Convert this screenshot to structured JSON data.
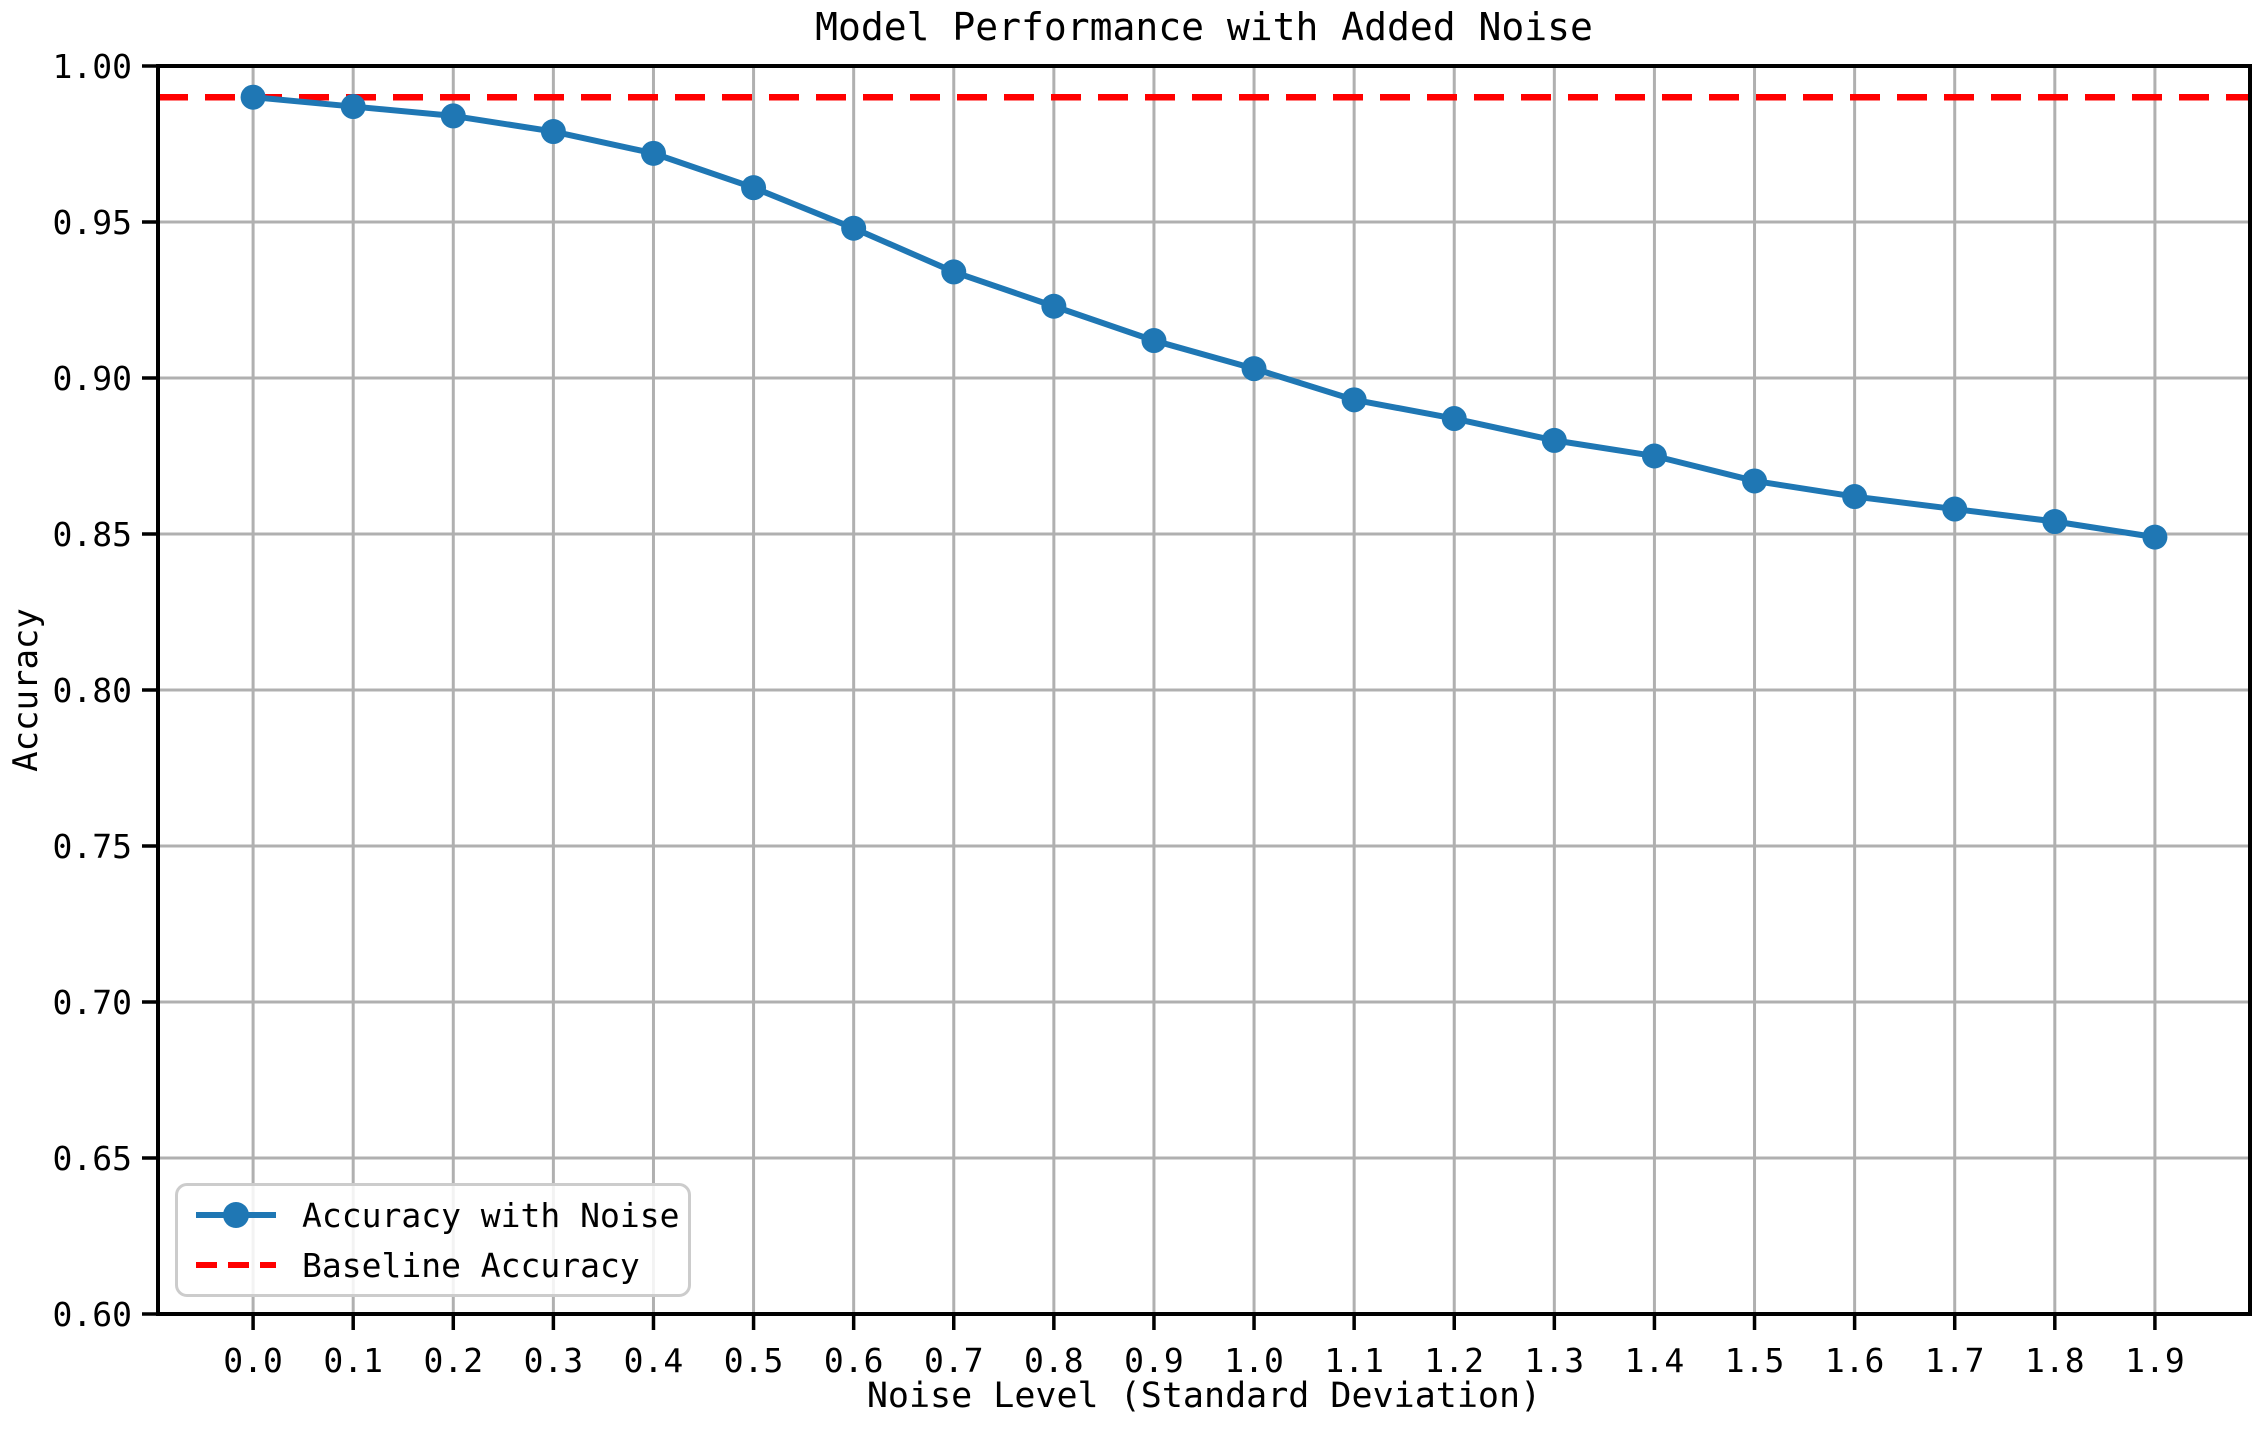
{
  "chart_data": {
    "type": "line",
    "title": "Model Performance with Added Noise",
    "xlabel": "Noise Level (Standard Deviation)",
    "ylabel": "Accuracy",
    "x": [
      0.0,
      0.1,
      0.2,
      0.3,
      0.4,
      0.5,
      0.6,
      0.7,
      0.8,
      0.9,
      1.0,
      1.1,
      1.2,
      1.3,
      1.4,
      1.5,
      1.6,
      1.7,
      1.8,
      1.9
    ],
    "series": [
      {
        "name": "Accuracy with Noise",
        "kind": "line-with-markers",
        "color": "#1f77b4",
        "values": [
          0.99,
          0.987,
          0.984,
          0.979,
          0.972,
          0.961,
          0.948,
          0.934,
          0.923,
          0.912,
          0.903,
          0.893,
          0.887,
          0.88,
          0.875,
          0.867,
          0.862,
          0.858,
          0.854,
          0.849
        ]
      },
      {
        "name": "Baseline Accuracy",
        "kind": "horizontal-dashed-line",
        "color": "#ff0000",
        "value": 0.99
      }
    ],
    "xlim": [
      -0.095,
      1.995
    ],
    "ylim": [
      0.6,
      1.0
    ],
    "xticks": [
      0.0,
      0.1,
      0.2,
      0.3,
      0.4,
      0.5,
      0.6,
      0.7,
      0.8,
      0.9,
      1.0,
      1.1,
      1.2,
      1.3,
      1.4,
      1.5,
      1.6,
      1.7,
      1.8,
      1.9
    ],
    "xtick_labels": [
      "0.0",
      "0.1",
      "0.2",
      "0.3",
      "0.4",
      "0.5",
      "0.6",
      "0.7",
      "0.8",
      "0.9",
      "1.0",
      "1.1",
      "1.2",
      "1.3",
      "1.4",
      "1.5",
      "1.6",
      "1.7",
      "1.8",
      "1.9"
    ],
    "yticks": [
      0.6,
      0.65,
      0.7,
      0.75,
      0.8,
      0.85,
      0.9,
      0.95,
      1.0
    ],
    "ytick_labels": [
      "0.60",
      "0.65",
      "0.70",
      "0.75",
      "0.80",
      "0.85",
      "0.90",
      "0.95",
      "1.00"
    ],
    "grid": true,
    "legend_position": "lower left",
    "colors": {
      "grid": "#b0b0b0",
      "spine": "#000000",
      "tick": "#000000",
      "legend_border": "#cccccc",
      "background": "#ffffff"
    }
  },
  "legend": {
    "items": [
      {
        "label": "Accuracy with Noise"
      },
      {
        "label": "Baseline Accuracy"
      }
    ]
  }
}
